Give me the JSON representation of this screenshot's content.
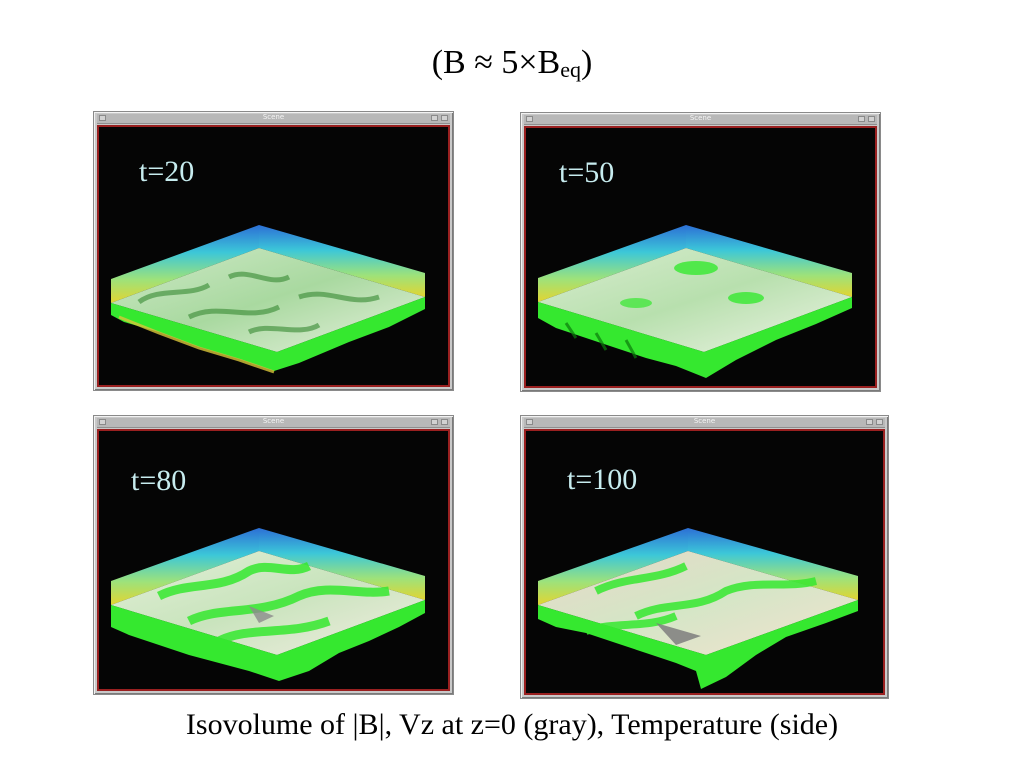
{
  "slide": {
    "title_main": "(B ≈ 5×B",
    "title_sub": "eq",
    "title_close": ")",
    "caption": "Isovolume of |B|, Vz at z=0 (gray), Temperature (side)"
  },
  "panels": [
    {
      "window_title": "Scene",
      "time_label": "t=20"
    },
    {
      "window_title": "Scene",
      "time_label": "t=50"
    },
    {
      "window_title": "Scene",
      "time_label": "t=80"
    },
    {
      "window_title": "Scene",
      "time_label": "t=100"
    }
  ],
  "colors": {
    "viewport_background": "#050505",
    "viewport_border": "#9a2020",
    "label_text": "#c7ecef",
    "isovolume": "#35e82f",
    "side_top": "#2c6fd6",
    "side_mid": "#3cc7d8",
    "side_bottom": "#e2d531"
  }
}
